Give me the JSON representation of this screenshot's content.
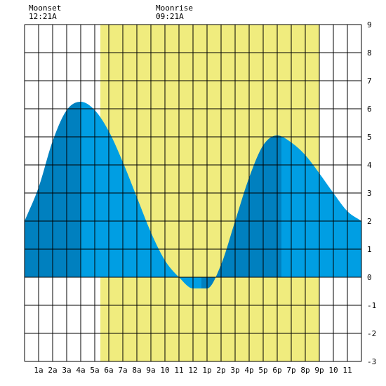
{
  "moon": {
    "moonset_title": "Moonset",
    "moonset_time": "12:21A",
    "moonrise_title": "Moonrise",
    "moonrise_time": "09:21A"
  },
  "colors": {
    "background": "#ffffff",
    "daylight": "#f0ec7e",
    "tide_light": "#009ee3",
    "tide_dark": "#0080bf",
    "grid": "#000000"
  },
  "chart_data": {
    "type": "area",
    "title": "",
    "xlabel": "",
    "ylabel": "",
    "xlim": [
      0,
      24
    ],
    "ylim": [
      -3,
      9
    ],
    "x_tick_labels": [
      "1a",
      "2a",
      "3a",
      "4a",
      "5a",
      "6a",
      "7a",
      "8a",
      "9a",
      "10",
      "11",
      "12",
      "1p",
      "2p",
      "3p",
      "4p",
      "5p",
      "6p",
      "7p",
      "8p",
      "9p",
      "10",
      "11"
    ],
    "y_tick_labels": [
      "-3",
      "-2",
      "-1",
      "0",
      "1",
      "2",
      "3",
      "4",
      "5",
      "6",
      "7",
      "8",
      "9"
    ],
    "daylight_hours": [
      5.4,
      21.0
    ],
    "tide_extrema": [
      {
        "type": "high",
        "time": 4.0,
        "height": 6.25
      },
      {
        "type": "low",
        "time": 12.6,
        "height": -0.5
      },
      {
        "type": "high",
        "time": 18.3,
        "height": 5.05
      }
    ],
    "series": [
      {
        "x": [
          0,
          1,
          2,
          3,
          4,
          5,
          6,
          7,
          8,
          9,
          10,
          11,
          12,
          13,
          14,
          15,
          16,
          17,
          18,
          19,
          20,
          21,
          22,
          23,
          24
        ],
        "values": [
          2.0,
          3.2,
          4.85,
          5.95,
          6.25,
          5.95,
          5.2,
          4.1,
          2.85,
          1.6,
          0.6,
          0.0,
          -0.4,
          -0.4,
          0.45,
          2.0,
          3.55,
          4.7,
          5.05,
          4.8,
          4.35,
          3.7,
          3.0,
          2.35,
          2.0
        ]
      }
    ]
  }
}
